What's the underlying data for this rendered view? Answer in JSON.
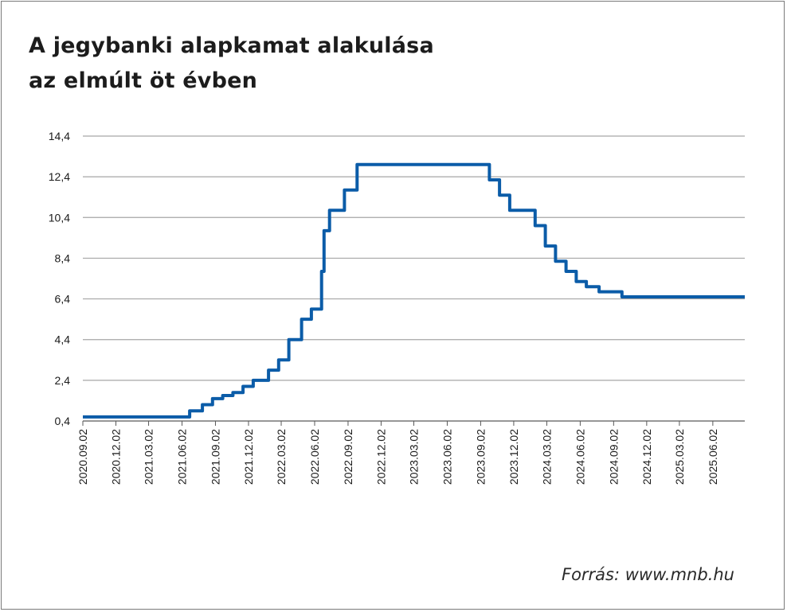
{
  "title_line1": "A jegybanki alapkamat alakulása",
  "title_line2": "az elmúlt öt évben",
  "source": "Forrás: www.mnb.hu",
  "colors": {
    "line": "#0b5ca8",
    "grid": "#a6a6a6",
    "axis": "#595959",
    "text": "#1c1c1c"
  },
  "chart_data": {
    "type": "line",
    "title": "A jegybanki alapkamat alakulása az elmúlt öt évben",
    "ylim": [
      0.4,
      14.4
    ],
    "yticks": [
      0.4,
      2.4,
      4.4,
      6.4,
      8.4,
      10.4,
      12.4,
      14.4
    ],
    "ytick_labels": [
      "0,4",
      "2,4",
      "4,4",
      "6,4",
      "8,4",
      "10,4",
      "12,4",
      "14,4"
    ],
    "xlim": [
      "2020-09-02",
      "2025-08-29"
    ],
    "xticks": [
      "2020-09-02",
      "2020-12-02",
      "2021-03-02",
      "2021-06-02",
      "2021-09-02",
      "2021-12-02",
      "2022-03-02",
      "2022-06-02",
      "2022-09-02",
      "2022-12-02",
      "2023-03-02",
      "2023-06-02",
      "2023-09-02",
      "2023-12-02",
      "2024-03-02",
      "2024-06-02",
      "2024-09-02",
      "2024-12-02",
      "2025-03-02",
      "2025-06-02"
    ],
    "xtick_labels": [
      "2020.09.02",
      "2020.12.02",
      "2021.03.02",
      "2021.06.02",
      "2021.09.02",
      "2021.12.02",
      "2022.03.02",
      "2022.06.02",
      "2022.09.02",
      "2022.12.02",
      "2023.03.02",
      "2023.06.02",
      "2023.09.02",
      "2023.12.02",
      "2024.03.02",
      "2024.06.02",
      "2024.09.02",
      "2024.12.02",
      "2025.03.02",
      "2025.06.02"
    ],
    "grid": true,
    "step": true,
    "series": [
      {
        "color": "#0b5ca8",
        "points": [
          [
            "2020-09-02",
            0.6
          ],
          [
            "2021-06-23",
            0.9
          ],
          [
            "2021-07-28",
            1.2
          ],
          [
            "2021-08-25",
            1.5
          ],
          [
            "2021-09-22",
            1.65
          ],
          [
            "2021-10-20",
            1.8
          ],
          [
            "2021-11-17",
            2.1
          ],
          [
            "2021-12-15",
            2.4
          ],
          [
            "2022-01-26",
            2.9
          ],
          [
            "2022-02-23",
            3.4
          ],
          [
            "2022-03-23",
            4.4
          ],
          [
            "2022-04-27",
            5.4
          ],
          [
            "2022-05-24",
            5.9
          ],
          [
            "2022-06-21",
            7.75
          ],
          [
            "2022-06-28",
            9.75
          ],
          [
            "2022-07-13",
            10.75
          ],
          [
            "2022-08-23",
            11.75
          ],
          [
            "2022-09-27",
            13.0
          ],
          [
            "2023-09-26",
            12.25
          ],
          [
            "2023-10-24",
            11.5
          ],
          [
            "2023-11-21",
            10.75
          ],
          [
            "2024-01-30",
            10.0
          ],
          [
            "2024-02-27",
            9.0
          ],
          [
            "2024-03-26",
            8.25
          ],
          [
            "2024-04-24",
            7.75
          ],
          [
            "2024-05-22",
            7.25
          ],
          [
            "2024-06-19",
            7.0
          ],
          [
            "2024-07-24",
            6.75
          ],
          [
            "2024-09-25",
            6.5
          ],
          [
            "2025-08-29",
            6.5
          ]
        ]
      }
    ]
  }
}
